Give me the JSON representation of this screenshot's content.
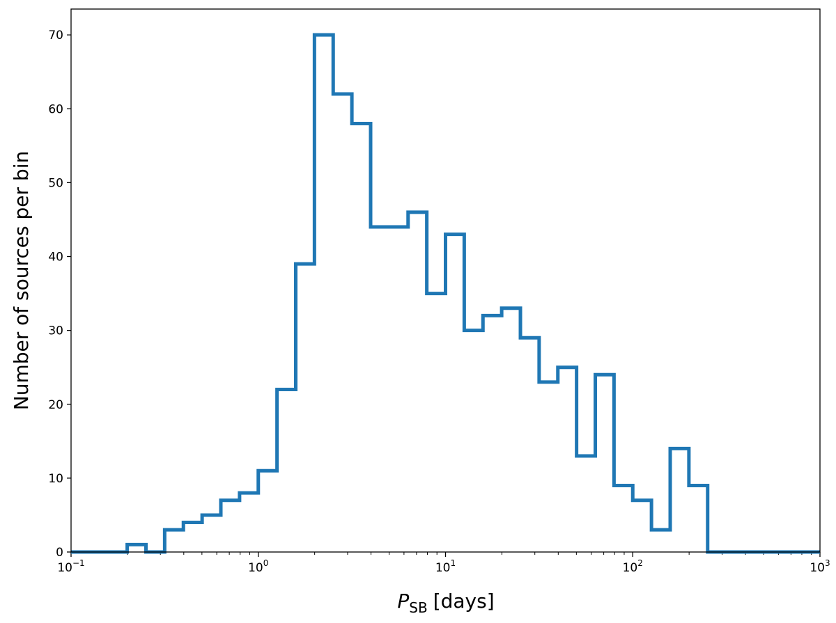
{
  "chart_data": {
    "type": "histogram-step",
    "xlabel_symbol": "P",
    "xlabel_subscript": "SB",
    "xlabel_unit": "[days]",
    "ylabel": "Number of sources per bin",
    "x_scale": "log",
    "xlim": [
      0.1,
      1000
    ],
    "ylim": [
      0,
      73.5
    ],
    "x_ticks": [
      {
        "value": 0.1,
        "base": "10",
        "exp": "−1"
      },
      {
        "value": 1,
        "base": "10",
        "exp": "0"
      },
      {
        "value": 10,
        "base": "10",
        "exp": "1"
      },
      {
        "value": 100,
        "base": "10",
        "exp": "2"
      },
      {
        "value": 1000,
        "base": "10",
        "exp": "3"
      }
    ],
    "y_ticks": [
      0,
      10,
      20,
      30,
      40,
      50,
      60,
      70
    ],
    "grid": false,
    "legend": "none",
    "line_color": "#1f77b4",
    "bin_edges": [
      0.1,
      0.1259,
      0.1585,
      0.1995,
      0.2512,
      0.3162,
      0.3981,
      0.5012,
      0.631,
      0.7943,
      1.0,
      1.259,
      1.585,
      1.995,
      2.512,
      3.162,
      3.981,
      5.012,
      6.31,
      7.943,
      10.0,
      12.59,
      15.85,
      19.95,
      25.12,
      31.62,
      39.81,
      50.12,
      63.1,
      79.43,
      100.0,
      125.9,
      158.5,
      199.5,
      251.2,
      316.2,
      398.1,
      501.2,
      631.0,
      794.3,
      1000.0
    ],
    "counts": [
      0,
      0,
      0,
      1,
      0,
      3,
      4,
      5,
      7,
      8,
      11,
      22,
      39,
      70,
      62,
      58,
      44,
      44,
      46,
      35,
      43,
      30,
      32,
      33,
      29,
      23,
      25,
      13,
      24,
      9,
      7,
      3,
      14,
      9,
      0,
      0,
      0,
      0,
      0,
      0
    ]
  }
}
